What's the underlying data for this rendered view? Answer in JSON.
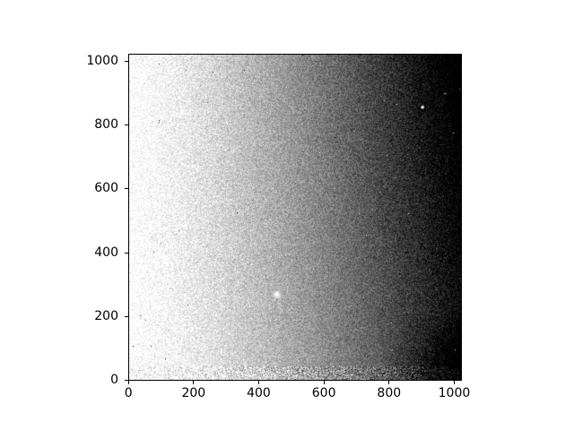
{
  "figure": {
    "background": "#ffffff",
    "title": ""
  },
  "axes": {
    "spine_color": "#000000",
    "tick_color": "#000000",
    "tick_length": 4,
    "tick_label_color": "#000000",
    "x_tick_labels": [
      "0",
      "200",
      "400",
      "600",
      "800",
      "1000"
    ],
    "y_tick_labels": [
      "0",
      "200",
      "400",
      "600",
      "800",
      "1000"
    ]
  },
  "chart_data": {
    "type": "heatmap",
    "title": "",
    "xlabel": "",
    "ylabel": "",
    "colormap": "gray",
    "legend": null,
    "grid": false,
    "x_range": [
      -0.5,
      1023.5
    ],
    "y_range": [
      -0.5,
      1023.5
    ],
    "image_shape": [
      1024,
      1024
    ],
    "xticks": [
      0,
      200,
      400,
      600,
      800,
      1000
    ],
    "yticks": [
      0,
      200,
      400,
      600,
      800,
      1000
    ],
    "description": "Noisy grayscale CCD-style image: bright (near white) on the left, smoothly darkening toward the right and upper-right where it becomes black; an extra dark shadow fills the lower-right corner; a speckled band runs along the bottom edge; one prominent fuzzy white star near the center-left and a small sharp white dot in the upper right.",
    "background_model": {
      "base": 1.03,
      "x_coef": 0.95,
      "x_pow": 1.35,
      "xy_coef": 0.2,
      "corner_shadow": {
        "x_start": 0.75,
        "y_max": 0.22,
        "amount": 0.28
      },
      "bottom_band": {
        "y_frac": 0.04,
        "boost": 0.04,
        "noise_mult": 2.2
      }
    },
    "noise": {
      "amplitude": 0.2,
      "salt_pepper_prob": 0.0007,
      "seed": 42
    },
    "bright_sources": [
      {
        "name": "large-star",
        "x": 455,
        "y": 268,
        "core_radius": 1.7,
        "halo_radius": 5.2,
        "peak": 1.0
      },
      {
        "name": "small-star",
        "x": 905,
        "y": 858,
        "core_radius": 1.1,
        "halo_radius": 2.4,
        "peak": 1.0
      }
    ],
    "specks": [
      {
        "x": 861,
        "y": 524,
        "w": 1,
        "h": 1,
        "level": 1.0
      },
      {
        "x": 627,
        "y": 549,
        "w": 1,
        "h": 1,
        "level": 0.95
      },
      {
        "x": 972,
        "y": 903,
        "w": 3,
        "h": 1,
        "level": 0.62
      },
      {
        "x": 786,
        "y": 880,
        "w": 1,
        "h": 1,
        "level": 0.85
      },
      {
        "x": 355,
        "y": 975,
        "w": 1,
        "h": 1,
        "level": 0.05
      }
    ]
  }
}
